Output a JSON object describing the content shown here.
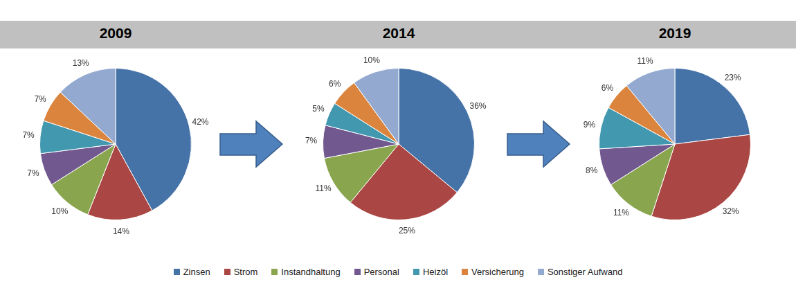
{
  "chart_data": [
    {
      "type": "pie",
      "title": "2009",
      "categories": [
        "Zinsen",
        "Strom",
        "Instandhaltung",
        "Personal",
        "Heizöl",
        "Versicherung",
        "Sonstiger Aufwand"
      ],
      "values": [
        42,
        14,
        10,
        7,
        7,
        7,
        13
      ],
      "value_labels": [
        "42%",
        "14%",
        "10%",
        "7%",
        "7%",
        "7%",
        "13%"
      ],
      "colors": [
        "#4572a7",
        "#aa4643",
        "#89a54e",
        "#71588f",
        "#4198af",
        "#db843d",
        "#93a9cf"
      ],
      "data_labels": true,
      "legend": "bottom"
    },
    {
      "type": "pie",
      "title": "2014",
      "categories": [
        "Zinsen",
        "Strom",
        "Instandhaltung",
        "Personal",
        "Heizöl",
        "Versicherung",
        "Sonstiger Aufwand"
      ],
      "values": [
        36,
        25,
        11,
        7,
        5,
        6,
        10
      ],
      "value_labels": [
        "36%",
        "25%",
        "11%",
        "7%",
        "5%",
        "6%",
        "10%"
      ],
      "colors": [
        "#4572a7",
        "#aa4643",
        "#89a54e",
        "#71588f",
        "#4198af",
        "#db843d",
        "#93a9cf"
      ],
      "data_labels": true,
      "legend": "bottom"
    },
    {
      "type": "pie",
      "title": "2019",
      "categories": [
        "Zinsen",
        "Strom",
        "Instandhaltung",
        "Personal",
        "Heizöl",
        "Versicherung",
        "Sonstiger Aufwand"
      ],
      "values": [
        23,
        32,
        11,
        8,
        9,
        6,
        11
      ],
      "value_labels": [
        "23%",
        "32%",
        "11%",
        "8%",
        "9%",
        "6%",
        "11%"
      ],
      "colors": [
        "#4572a7",
        "#aa4643",
        "#89a54e",
        "#71588f",
        "#4198af",
        "#db843d",
        "#93a9cf"
      ],
      "data_labels": true,
      "legend": "bottom"
    }
  ]
}
